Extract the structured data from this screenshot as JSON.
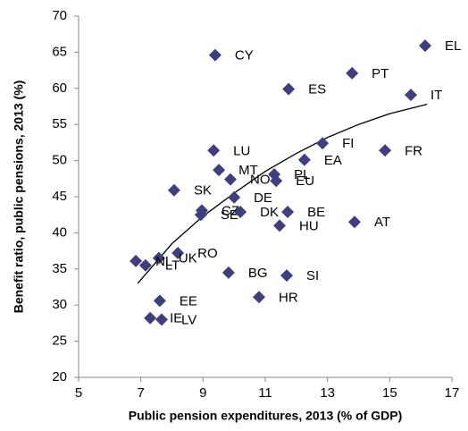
{
  "chart_data": {
    "type": "scatter",
    "x_label": "Public pension expenditures, 2013 (% of GDP)",
    "y_label": "Benefit ratio, public pensions, 2013 (%)",
    "xlim": [
      5,
      17
    ],
    "xticks": [
      5,
      7,
      9,
      11,
      13,
      15,
      17
    ],
    "ylim": [
      20,
      70
    ],
    "yticks": [
      20,
      25,
      30,
      35,
      40,
      45,
      50,
      55,
      60,
      65,
      70
    ],
    "grid": false,
    "series": [
      {
        "color": "#3f3f7f",
        "labels": [
          "EL",
          "CY",
          "PT",
          "ES",
          "IT",
          "LU",
          "FI",
          "FR",
          "EA",
          "MT",
          "PL",
          "NO",
          "EU",
          "SK",
          "DE",
          "CZ",
          "SE",
          "DK",
          "BE",
          "HU",
          "AT",
          "RO",
          "UK",
          "NL",
          "LT",
          "BG",
          "SI",
          "HR",
          "EE",
          "IE",
          "LV"
        ],
        "x": [
          16.14,
          9.39,
          13.79,
          11.75,
          15.68,
          9.34,
          12.84,
          14.85,
          12.26,
          9.51,
          11.29,
          9.88,
          11.35,
          8.07,
          10.0,
          8.96,
          8.93,
          10.2,
          11.72,
          11.46,
          13.87,
          8.19,
          7.58,
          6.84,
          7.15,
          9.82,
          11.69,
          10.8,
          7.61,
          7.3,
          7.67
        ],
        "values": [
          65.9,
          64.6,
          62.1,
          59.9,
          59.1,
          51.4,
          52.4,
          51.4,
          50.1,
          48.7,
          48.1,
          47.4,
          47.2,
          45.9,
          44.9,
          43.1,
          42.5,
          42.9,
          42.9,
          41.0,
          41.5,
          37.2,
          36.5,
          36.1,
          35.5,
          34.5,
          34.1,
          31.1,
          30.6,
          28.2,
          28.0
        ]
      }
    ],
    "trendline": {
      "color": "#000000",
      "x": [
        6.9,
        8,
        9,
        10,
        11,
        12,
        13,
        14,
        15,
        16.2
      ],
      "values": [
        33,
        38.5,
        42.3,
        45.5,
        48.5,
        51,
        53.2,
        55,
        56.5,
        57.8
      ]
    }
  }
}
